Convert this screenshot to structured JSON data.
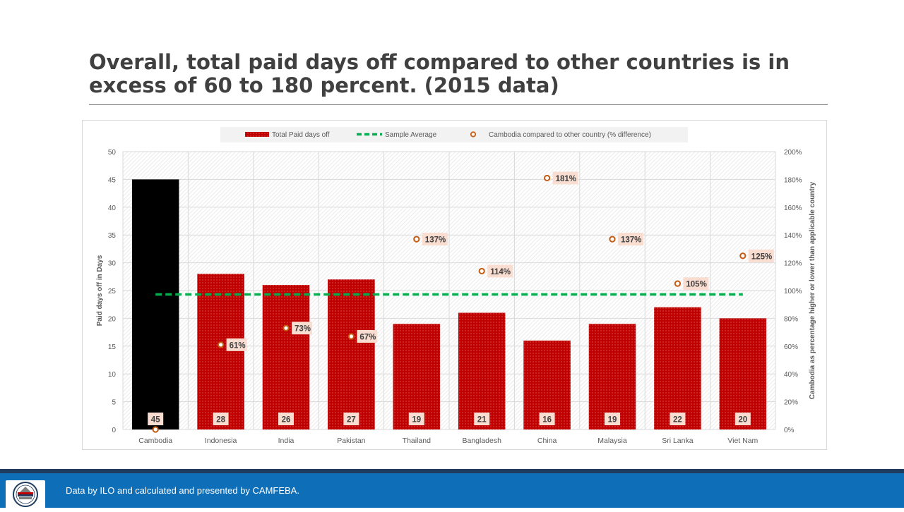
{
  "slide": {
    "title": "Overall, total paid days off compared to other countries is in excess of 60 to 180 percent. (2015 data)",
    "footer_text": "Data by ILO and calculated and presented by CAMFEBA."
  },
  "colors": {
    "bar": "#c00000",
    "highlight_bar": "#000000",
    "average_line": "#00b050",
    "marker": "#c55a11",
    "label_bg": "#f8ddd0"
  },
  "chart_data": {
    "type": "bar",
    "categories": [
      "Cambodia",
      "Indonesia",
      "India",
      "Pakistan",
      "Thailand",
      "Bangladesh",
      "China",
      "Malaysia",
      "Sri Lanka",
      "Viet Nam"
    ],
    "series": [
      {
        "name": "Total Paid days off",
        "type": "bar",
        "axis": "left",
        "values": [
          45,
          28,
          26,
          27,
          19,
          21,
          16,
          19,
          22,
          20
        ],
        "data_labels": [
          "45",
          "28",
          "26",
          "27",
          "19",
          "21",
          "16",
          "19",
          "22",
          "20"
        ]
      },
      {
        "name": "Sample Average",
        "type": "line",
        "axis": "left",
        "style": "dashed",
        "values": [
          24.3,
          24.3,
          24.3,
          24.3,
          24.3,
          24.3,
          24.3,
          24.3,
          24.3,
          24.3
        ]
      },
      {
        "name": "Cambodia compared to other country (% difference)",
        "type": "scatter",
        "axis": "right",
        "values": [
          0,
          61,
          73,
          67,
          137,
          114,
          181,
          137,
          105,
          125
        ],
        "data_labels": [
          "",
          "61%",
          "73%",
          "67%",
          "137%",
          "114%",
          "181%",
          "137%",
          "105%",
          "125%"
        ]
      }
    ],
    "ylabel": "Paid days off in Days",
    "y2label": "Cambodia as percentage  higher or lower than applicable country",
    "ylim": [
      0,
      50
    ],
    "y2lim": [
      0,
      200
    ],
    "yticks": [
      "0",
      "5",
      "10",
      "15",
      "20",
      "25",
      "30",
      "35",
      "40",
      "45",
      "50"
    ],
    "y2ticks": [
      "0%",
      "20%",
      "40%",
      "60%",
      "80%",
      "100%",
      "120%",
      "140%",
      "160%",
      "180%",
      "200%"
    ],
    "grid": true,
    "legend_position": "top"
  }
}
